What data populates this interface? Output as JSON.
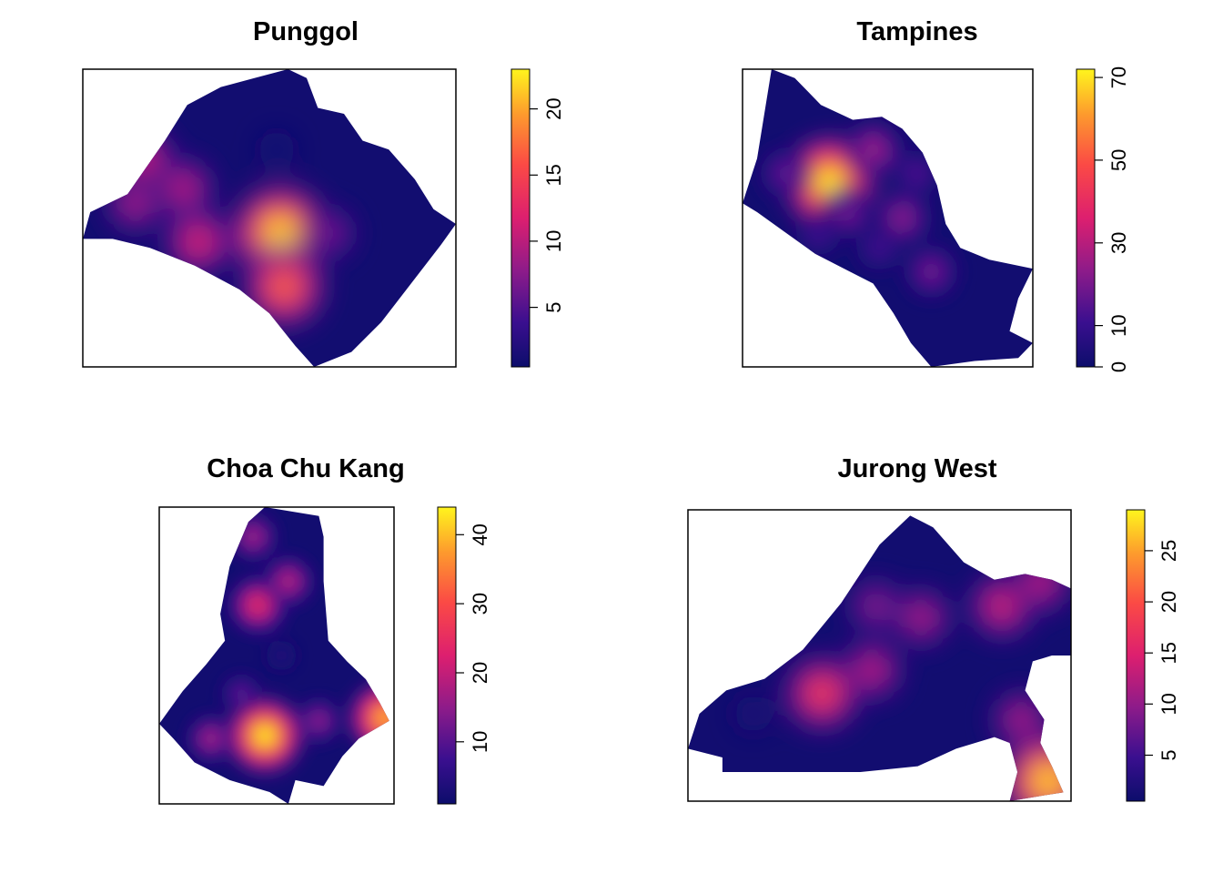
{
  "chart_data": [
    {
      "type": "heatmap",
      "title": "Punggol",
      "scale_min": 0.5,
      "scale_max": 23,
      "colorbar_ticks": [
        5,
        10,
        15,
        20
      ],
      "hotspots": [
        {
          "x": 0.53,
          "y": 0.55,
          "value": 23
        },
        {
          "x": 0.54,
          "y": 0.73,
          "value": 18
        },
        {
          "x": 0.31,
          "y": 0.58,
          "value": 13
        },
        {
          "x": 0.27,
          "y": 0.4,
          "value": 11
        },
        {
          "x": 0.16,
          "y": 0.3,
          "value": 12
        },
        {
          "x": 0.14,
          "y": 0.45,
          "value": 10
        },
        {
          "x": 0.66,
          "y": 0.55,
          "value": 8
        },
        {
          "x": 0.52,
          "y": 0.27,
          "value": 2
        }
      ],
      "boundary": [
        [
          0.0,
          0.57
        ],
        [
          0.02,
          0.48
        ],
        [
          0.12,
          0.42
        ],
        [
          0.22,
          0.24
        ],
        [
          0.28,
          0.12
        ],
        [
          0.37,
          0.06
        ],
        [
          0.46,
          0.03
        ],
        [
          0.55,
          0.0
        ],
        [
          0.6,
          0.03
        ],
        [
          0.63,
          0.13
        ],
        [
          0.7,
          0.15
        ],
        [
          0.75,
          0.24
        ],
        [
          0.82,
          0.27
        ],
        [
          0.89,
          0.37
        ],
        [
          0.94,
          0.47
        ],
        [
          1.0,
          0.52
        ],
        [
          0.96,
          0.59
        ],
        [
          0.88,
          0.72
        ],
        [
          0.8,
          0.85
        ],
        [
          0.72,
          0.95
        ],
        [
          0.62,
          1.0
        ],
        [
          0.57,
          0.93
        ],
        [
          0.5,
          0.82
        ],
        [
          0.42,
          0.74
        ],
        [
          0.3,
          0.66
        ],
        [
          0.18,
          0.6
        ],
        [
          0.08,
          0.57
        ]
      ]
    },
    {
      "type": "heatmap",
      "title": "Tampines",
      "scale_min": 0,
      "scale_max": 72,
      "colorbar_ticks": [
        0,
        10,
        30,
        50,
        70
      ],
      "hotspots": [
        {
          "x": 0.3,
          "y": 0.38,
          "value": 72
        },
        {
          "x": 0.45,
          "y": 0.27,
          "value": 28
        },
        {
          "x": 0.55,
          "y": 0.5,
          "value": 25
        },
        {
          "x": 0.36,
          "y": 0.48,
          "value": 22
        },
        {
          "x": 0.65,
          "y": 0.68,
          "value": 22
        },
        {
          "x": 0.15,
          "y": 0.35,
          "value": 20
        },
        {
          "x": 0.6,
          "y": 0.35,
          "value": 16
        },
        {
          "x": 0.47,
          "y": 0.6,
          "value": 14
        },
        {
          "x": 0.26,
          "y": 0.55,
          "value": 14
        }
      ],
      "boundary": [
        [
          0.0,
          0.45
        ],
        [
          0.05,
          0.3
        ],
        [
          0.1,
          0.0
        ],
        [
          0.18,
          0.03
        ],
        [
          0.27,
          0.12
        ],
        [
          0.38,
          0.17
        ],
        [
          0.48,
          0.16
        ],
        [
          0.55,
          0.2
        ],
        [
          0.62,
          0.28
        ],
        [
          0.67,
          0.39
        ],
        [
          0.7,
          0.52
        ],
        [
          0.75,
          0.6
        ],
        [
          0.85,
          0.64
        ],
        [
          1.0,
          0.67
        ],
        [
          0.95,
          0.77
        ],
        [
          0.92,
          0.88
        ],
        [
          1.0,
          0.92
        ],
        [
          0.95,
          0.97
        ],
        [
          0.8,
          0.98
        ],
        [
          0.65,
          1.0
        ],
        [
          0.58,
          0.92
        ],
        [
          0.52,
          0.82
        ],
        [
          0.45,
          0.72
        ],
        [
          0.35,
          0.67
        ],
        [
          0.25,
          0.62
        ],
        [
          0.15,
          0.55
        ],
        [
          0.05,
          0.48
        ]
      ]
    },
    {
      "type": "heatmap",
      "title": "Choa Chu Kang",
      "scale_min": 1,
      "scale_max": 44,
      "colorbar_ticks": [
        10,
        20,
        30,
        40
      ],
      "hotspots": [
        {
          "x": 0.45,
          "y": 0.77,
          "value": 44
        },
        {
          "x": 0.96,
          "y": 0.71,
          "value": 40
        },
        {
          "x": 0.42,
          "y": 0.33,
          "value": 26
        },
        {
          "x": 0.55,
          "y": 0.25,
          "value": 20
        },
        {
          "x": 0.4,
          "y": 0.1,
          "value": 18
        },
        {
          "x": 0.22,
          "y": 0.78,
          "value": 18
        },
        {
          "x": 0.68,
          "y": 0.72,
          "value": 16
        },
        {
          "x": 0.35,
          "y": 0.63,
          "value": 12
        },
        {
          "x": 0.52,
          "y": 0.5,
          "value": 5
        }
      ],
      "boundary": [
        [
          0.0,
          0.73
        ],
        [
          0.1,
          0.62
        ],
        [
          0.2,
          0.53
        ],
        [
          0.28,
          0.45
        ],
        [
          0.26,
          0.36
        ],
        [
          0.3,
          0.2
        ],
        [
          0.38,
          0.05
        ],
        [
          0.45,
          0.0
        ],
        [
          0.68,
          0.03
        ],
        [
          0.7,
          0.1
        ],
        [
          0.7,
          0.25
        ],
        [
          0.72,
          0.45
        ],
        [
          0.8,
          0.52
        ],
        [
          0.88,
          0.58
        ],
        [
          0.94,
          0.66
        ],
        [
          0.98,
          0.72
        ],
        [
          0.85,
          0.78
        ],
        [
          0.78,
          0.84
        ],
        [
          0.7,
          0.94
        ],
        [
          0.58,
          0.92
        ],
        [
          0.55,
          1.0
        ],
        [
          0.47,
          0.96
        ],
        [
          0.3,
          0.92
        ],
        [
          0.15,
          0.86
        ],
        [
          0.06,
          0.78
        ]
      ]
    },
    {
      "type": "heatmap",
      "title": "Jurong West",
      "scale_min": 0.5,
      "scale_max": 29,
      "colorbar_ticks": [
        5,
        10,
        15,
        20,
        25
      ],
      "hotspots": [
        {
          "x": 0.35,
          "y": 0.63,
          "value": 20
        },
        {
          "x": 0.94,
          "y": 0.93,
          "value": 29
        },
        {
          "x": 0.48,
          "y": 0.55,
          "value": 14
        },
        {
          "x": 0.61,
          "y": 0.37,
          "value": 13
        },
        {
          "x": 0.82,
          "y": 0.33,
          "value": 16
        },
        {
          "x": 0.92,
          "y": 0.25,
          "value": 14
        },
        {
          "x": 0.49,
          "y": 0.33,
          "value": 11
        },
        {
          "x": 0.87,
          "y": 0.72,
          "value": 13
        },
        {
          "x": 0.17,
          "y": 0.7,
          "value": 3
        }
      ],
      "boundary": [
        [
          0.0,
          0.82
        ],
        [
          0.03,
          0.7
        ],
        [
          0.1,
          0.62
        ],
        [
          0.2,
          0.58
        ],
        [
          0.3,
          0.48
        ],
        [
          0.4,
          0.32
        ],
        [
          0.5,
          0.12
        ],
        [
          0.58,
          0.02
        ],
        [
          0.64,
          0.06
        ],
        [
          0.72,
          0.18
        ],
        [
          0.8,
          0.24
        ],
        [
          0.88,
          0.22
        ],
        [
          0.95,
          0.24
        ],
        [
          1.0,
          0.27
        ],
        [
          1.0,
          0.5
        ],
        [
          0.95,
          0.5
        ],
        [
          0.9,
          0.52
        ],
        [
          0.88,
          0.62
        ],
        [
          0.93,
          0.72
        ],
        [
          0.92,
          0.8
        ],
        [
          0.95,
          0.88
        ],
        [
          0.98,
          0.97
        ],
        [
          0.93,
          0.98
        ],
        [
          0.84,
          1.0
        ],
        [
          0.86,
          0.9
        ],
        [
          0.84,
          0.8
        ],
        [
          0.8,
          0.78
        ],
        [
          0.7,
          0.82
        ],
        [
          0.6,
          0.88
        ],
        [
          0.45,
          0.9
        ],
        [
          0.3,
          0.9
        ],
        [
          0.09,
          0.9
        ],
        [
          0.09,
          0.85
        ]
      ]
    }
  ]
}
